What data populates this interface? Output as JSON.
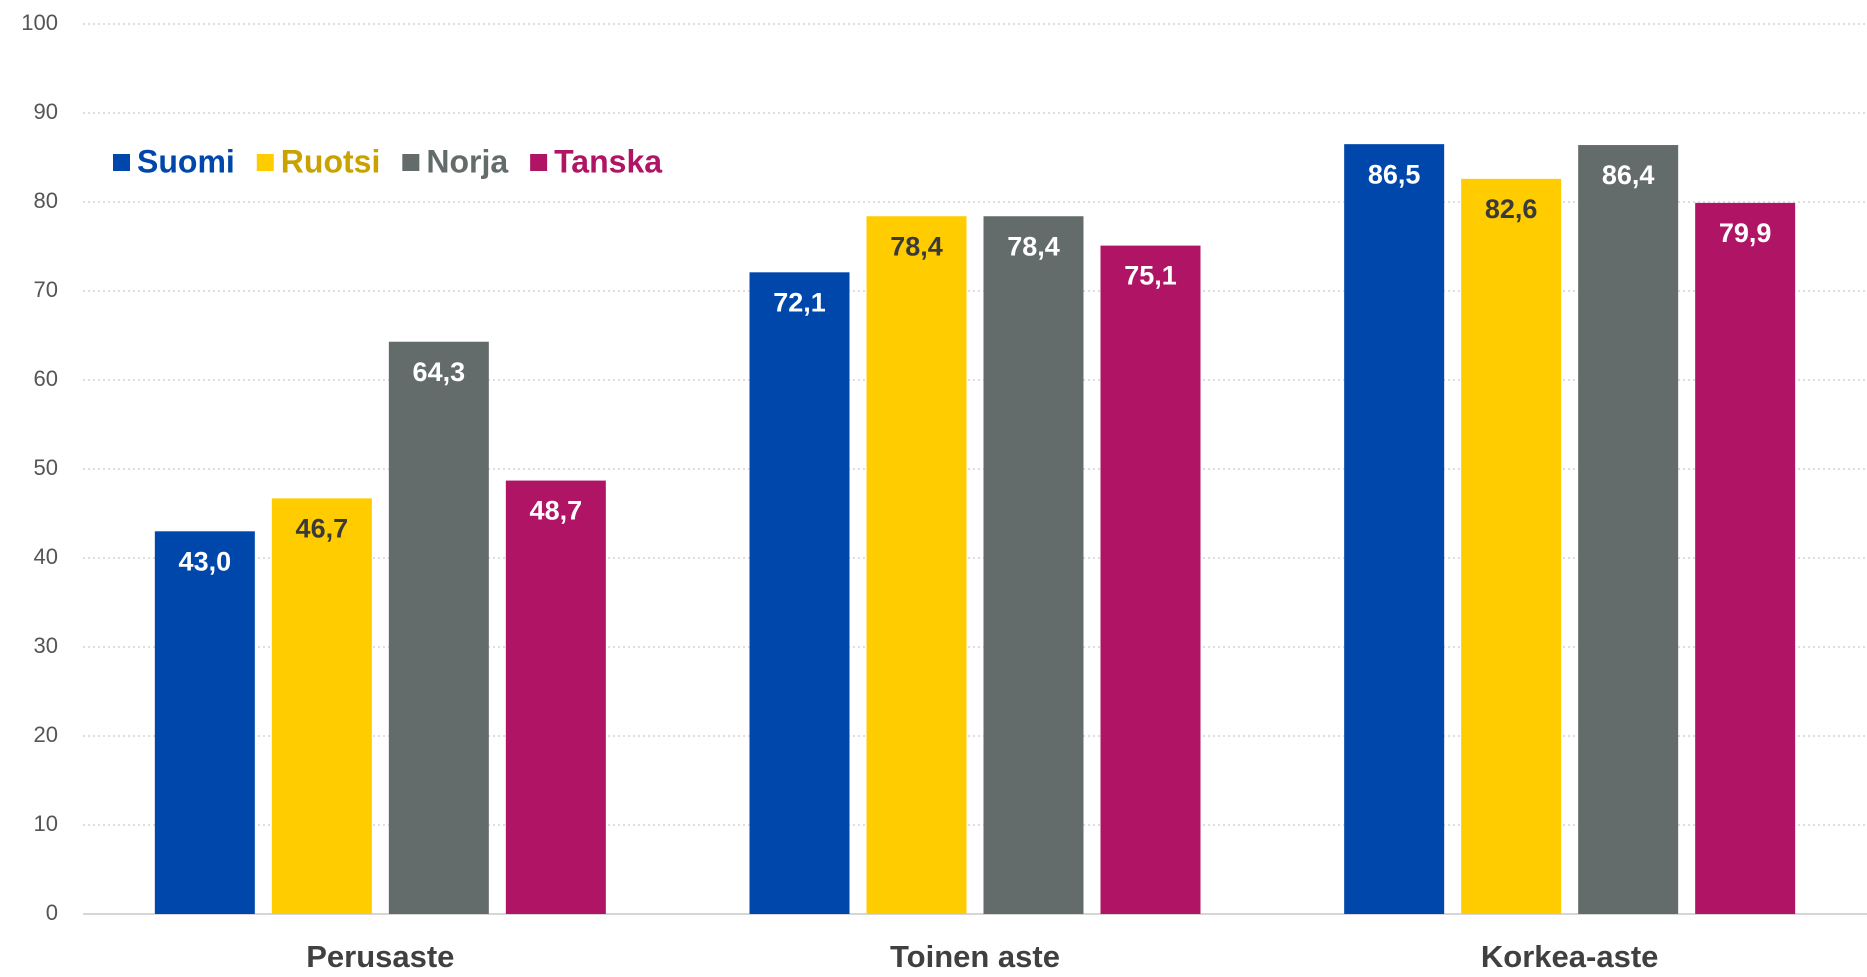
{
  "chart_data": {
    "type": "bar",
    "categories": [
      "Perusaste",
      "Toinen aste",
      "Korkea-aste"
    ],
    "series": [
      {
        "name": "Suomi",
        "color": "#0047ab",
        "values": [
          43.0,
          72.1,
          86.5
        ],
        "value_labels": [
          "43,0",
          "72,1",
          "86,5"
        ]
      },
      {
        "name": "Ruotsi",
        "color": "#ffcc00",
        "values": [
          46.7,
          78.4,
          82.6
        ],
        "value_labels": [
          "46,7",
          "78,4",
          "82,6"
        ]
      },
      {
        "name": "Norja",
        "color": "#646b6b",
        "values": [
          64.3,
          78.4,
          86.4
        ],
        "value_labels": [
          "64,3",
          "78,4",
          "86,4"
        ]
      },
      {
        "name": "Tanska",
        "color": "#b01565",
        "values": [
          48.7,
          75.1,
          79.9
        ],
        "value_labels": [
          "48,7",
          "75,1",
          "79,9"
        ]
      }
    ],
    "ylim": [
      0,
      100
    ],
    "yticks": [
      0,
      10,
      20,
      30,
      40,
      50,
      60,
      70,
      80,
      90,
      100
    ],
    "grid": true,
    "legend": "top-left"
  }
}
